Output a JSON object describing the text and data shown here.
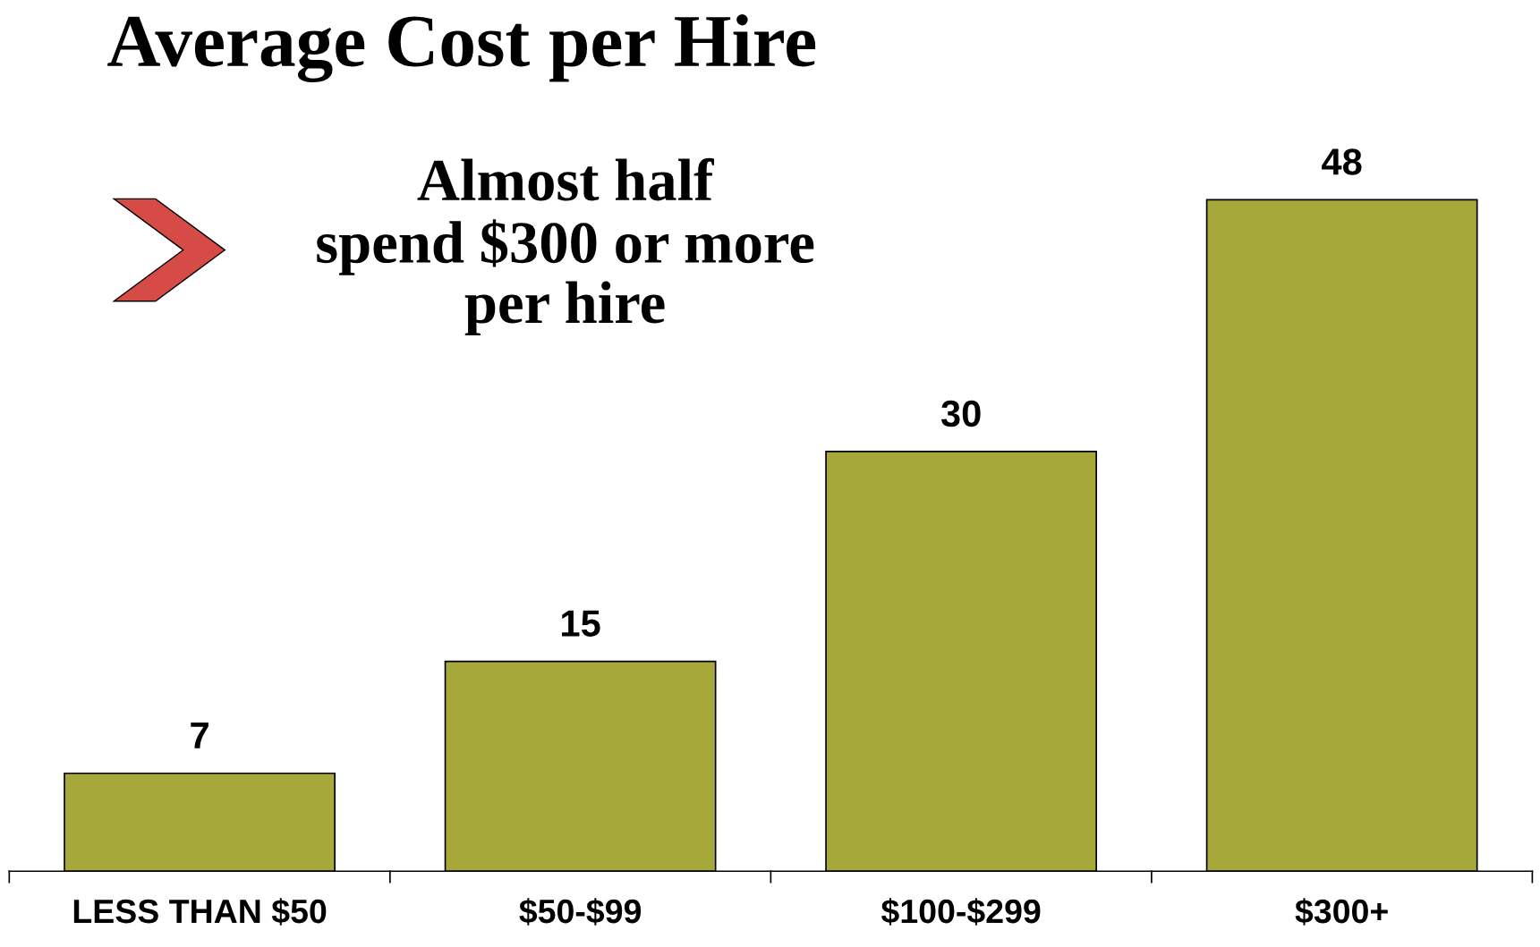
{
  "chart_data": {
    "type": "bar",
    "title": "Average Cost per Hire",
    "categories": [
      "LESS THAN $50",
      "$50-$99",
      "$100-$299",
      "$300+"
    ],
    "values": [
      7,
      15,
      30,
      48
    ],
    "color": "#a6a93a",
    "data_labels": true,
    "annotations": [
      "Almost half\nspend $300 or more\nper hire"
    ]
  }
}
